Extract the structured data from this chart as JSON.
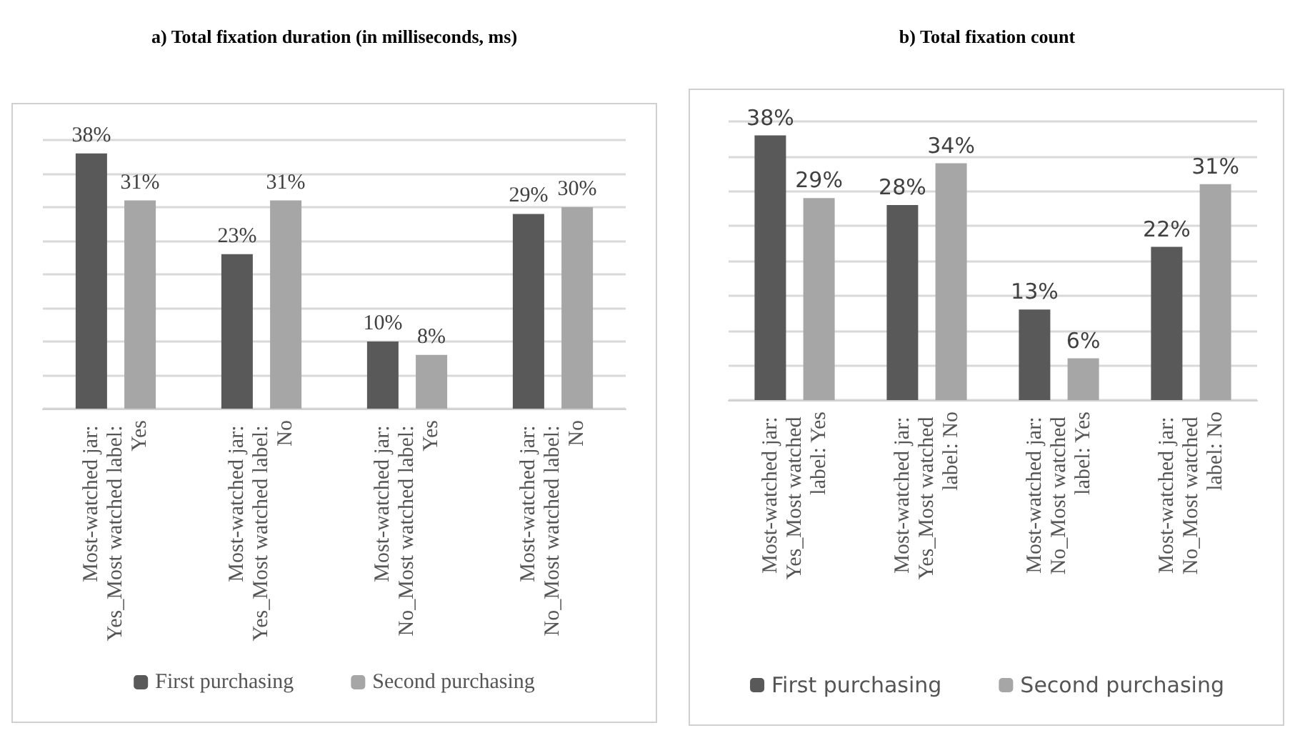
{
  "chart_data": [
    {
      "type": "bar",
      "title": "a) Total fixation duration (in milliseconds, ms)",
      "categories": [
        "Most-watched jar: Yes_Most watched label: Yes",
        "Most-watched jar: Yes_Most watched label: No",
        "Most-watched jar: No_Most watched label: Yes",
        "Most-watched jar: No_Most watched label: No"
      ],
      "series": [
        {
          "name": "First purchasing",
          "color": "#595959",
          "values": [
            38,
            23,
            10,
            29
          ],
          "value_labels": [
            "38%",
            "23%",
            "10%",
            "29%"
          ]
        },
        {
          "name": "Second purchasing",
          "color": "#a6a6a6",
          "values": [
            31,
            31,
            8,
            30
          ],
          "value_labels": [
            "31%",
            "31%",
            "8%",
            "30%"
          ]
        }
      ],
      "ylim": [
        0,
        40
      ],
      "yticks": [
        {
          "value": 0,
          "label": null
        },
        {
          "value": 5,
          "label": null
        },
        {
          "value": 10,
          "label": null
        },
        {
          "value": 15,
          "label": null
        },
        {
          "value": 20,
          "label": null
        },
        {
          "value": 25,
          "label": null
        },
        {
          "value": 30,
          "label": null
        },
        {
          "value": 35,
          "label": null
        },
        {
          "value": 40,
          "label": null
        }
      ],
      "tick_labels": "x",
      "grid": "y",
      "legend": "bottom"
    },
    {
      "type": "bar",
      "title": "b) Total fixation count",
      "categories": [
        "Most-watched jar: Yes_Most watched label: Yes",
        "Most-watched jar: Yes_Most watched label: No",
        "Most-watched jar: No_Most watched label: Yes",
        "Most-watched jar: No_Most watched label: No"
      ],
      "series": [
        {
          "name": "First purchasing",
          "color": "#595959",
          "values": [
            38,
            28,
            13,
            22
          ],
          "value_labels": [
            "38%",
            "28%",
            "13%",
            "22%"
          ]
        },
        {
          "name": "Second purchasing",
          "color": "#a6a6a6",
          "values": [
            29,
            34,
            6,
            31
          ],
          "value_labels": [
            "29%",
            "34%",
            "6%",
            "31%"
          ]
        }
      ],
      "ylim": [
        0,
        40
      ],
      "yticks": [
        {
          "value": 0,
          "label": null
        },
        {
          "value": 5,
          "label": null
        },
        {
          "value": 10,
          "label": null
        },
        {
          "value": 15,
          "label": null
        },
        {
          "value": 20,
          "label": null
        },
        {
          "value": 25,
          "label": null
        },
        {
          "value": 30,
          "label": null
        },
        {
          "value": 35,
          "label": null
        },
        {
          "value": 40,
          "label": null
        }
      ],
      "tick_labels": "x",
      "grid": "y",
      "legend": "bottom"
    }
  ]
}
